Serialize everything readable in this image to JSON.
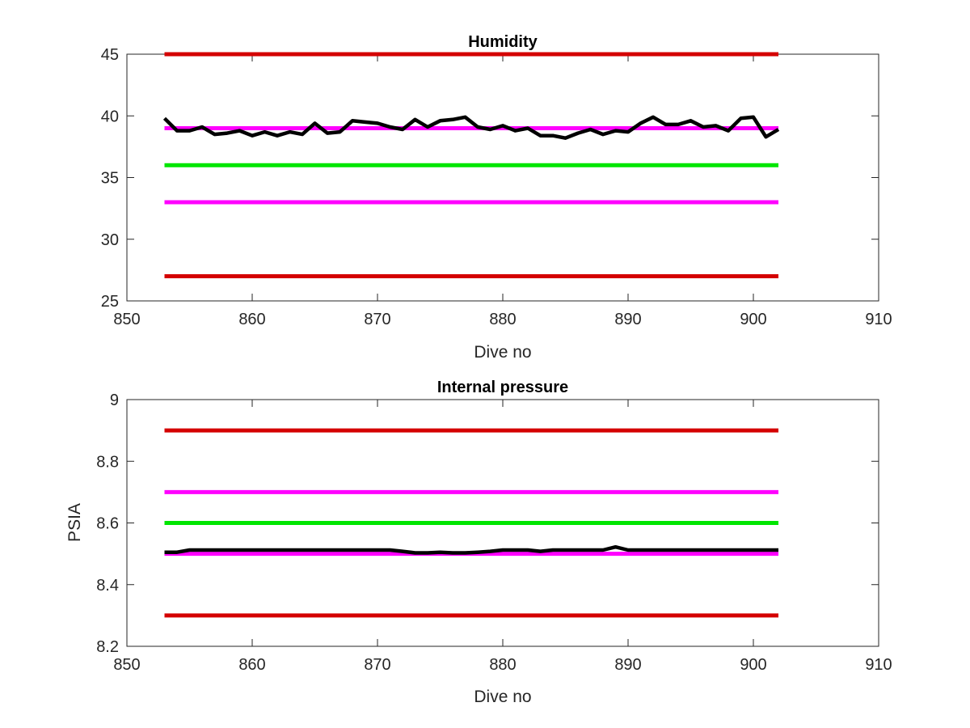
{
  "chart_data": [
    {
      "type": "line",
      "title": "Humidity",
      "xlabel": "Dive no",
      "ylabel": "",
      "xlim": [
        850,
        910
      ],
      "ylim": [
        25,
        45
      ],
      "xticks": [
        850,
        860,
        870,
        880,
        890,
        900,
        910
      ],
      "xtick_labels": [
        "850",
        "860",
        "870",
        "880",
        "890",
        "900",
        "910"
      ],
      "yticks": [
        25,
        30,
        35,
        40,
        45
      ],
      "ytick_labels": [
        "25",
        "30",
        "35",
        "40",
        "45"
      ],
      "grid": false,
      "reference_lines": [
        {
          "y": 45,
          "x_range": [
            853,
            902
          ],
          "color": "#d40000"
        },
        {
          "y": 39,
          "x_range": [
            853,
            902
          ],
          "color": "#ff00ff"
        },
        {
          "y": 36,
          "x_range": [
            853,
            902
          ],
          "color": "#00e600"
        },
        {
          "y": 33,
          "x_range": [
            853,
            902
          ],
          "color": "#ff00ff"
        },
        {
          "y": 27,
          "x_range": [
            853,
            902
          ],
          "color": "#d40000"
        }
      ],
      "series": [
        {
          "color": "#000000",
          "x": [
            853,
            854,
            855,
            856,
            857,
            858,
            859,
            860,
            861,
            862,
            863,
            864,
            865,
            866,
            867,
            868,
            869,
            870,
            871,
            872,
            873,
            874,
            875,
            876,
            877,
            878,
            879,
            880,
            881,
            882,
            883,
            884,
            885,
            886,
            887,
            888,
            889,
            890,
            891,
            892,
            893,
            894,
            895,
            896,
            897,
            898,
            899,
            900,
            901,
            902
          ],
          "y": [
            39.8,
            38.8,
            38.8,
            39.1,
            38.5,
            38.6,
            38.8,
            38.4,
            38.7,
            38.4,
            38.7,
            38.5,
            39.4,
            38.6,
            38.7,
            39.6,
            39.5,
            39.4,
            39.1,
            38.9,
            39.7,
            39.1,
            39.6,
            39.7,
            39.9,
            39.1,
            38.9,
            39.2,
            38.8,
            39.0,
            38.4,
            38.4,
            38.2,
            38.6,
            38.9,
            38.5,
            38.8,
            38.7,
            39.4,
            39.9,
            39.3,
            39.3,
            39.6,
            39.1,
            39.2,
            38.8,
            39.8,
            39.9,
            38.3,
            38.9
          ]
        }
      ]
    },
    {
      "type": "line",
      "title": "Internal pressure",
      "xlabel": "Dive no",
      "ylabel": "PSIA",
      "xlim": [
        850,
        910
      ],
      "ylim": [
        8.2,
        9.0
      ],
      "xticks": [
        850,
        860,
        870,
        880,
        890,
        900,
        910
      ],
      "xtick_labels": [
        "850",
        "860",
        "870",
        "880",
        "890",
        "900",
        "910"
      ],
      "yticks": [
        8.2,
        8.4,
        8.6,
        8.8,
        9.0
      ],
      "ytick_labels": [
        "8.2",
        "8.4",
        "8.6",
        "8.8",
        "9"
      ],
      "grid": false,
      "reference_lines": [
        {
          "y": 8.9,
          "x_range": [
            853,
            902
          ],
          "color": "#d40000"
        },
        {
          "y": 8.7,
          "x_range": [
            853,
            902
          ],
          "color": "#ff00ff"
        },
        {
          "y": 8.6,
          "x_range": [
            853,
            902
          ],
          "color": "#00e600"
        },
        {
          "y": 8.5,
          "x_range": [
            853,
            902
          ],
          "color": "#ff00ff"
        },
        {
          "y": 8.3,
          "x_range": [
            853,
            902
          ],
          "color": "#d40000"
        }
      ],
      "series": [
        {
          "color": "#000000",
          "x": [
            853,
            854,
            855,
            856,
            857,
            858,
            859,
            860,
            861,
            862,
            863,
            864,
            865,
            866,
            867,
            868,
            869,
            870,
            871,
            872,
            873,
            874,
            875,
            876,
            877,
            878,
            879,
            880,
            881,
            882,
            883,
            884,
            885,
            886,
            887,
            888,
            889,
            890,
            891,
            892,
            893,
            894,
            895,
            896,
            897,
            898,
            899,
            900,
            901,
            902
          ],
          "y": [
            8.505,
            8.505,
            8.512,
            8.512,
            8.512,
            8.512,
            8.512,
            8.512,
            8.512,
            8.512,
            8.512,
            8.512,
            8.512,
            8.512,
            8.512,
            8.512,
            8.512,
            8.512,
            8.512,
            8.508,
            8.503,
            8.503,
            8.505,
            8.503,
            8.503,
            8.505,
            8.508,
            8.512,
            8.512,
            8.512,
            8.508,
            8.512,
            8.512,
            8.512,
            8.512,
            8.512,
            8.522,
            8.512,
            8.512,
            8.512,
            8.512,
            8.512,
            8.512,
            8.512,
            8.512,
            8.512,
            8.512,
            8.512,
            8.512,
            8.512
          ]
        }
      ]
    }
  ]
}
